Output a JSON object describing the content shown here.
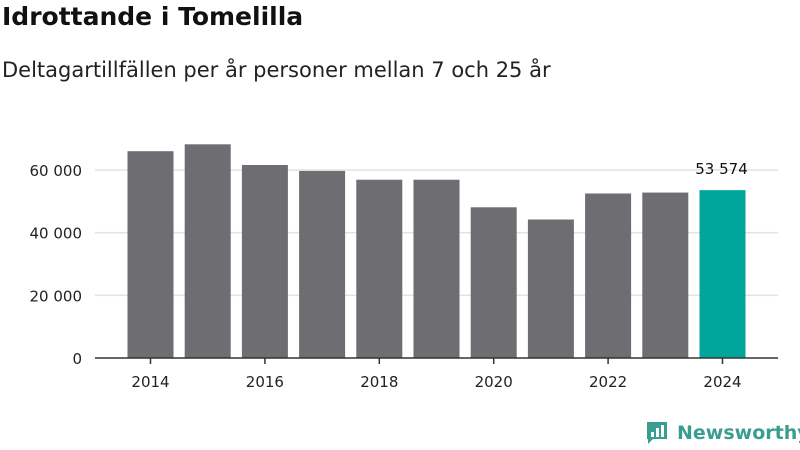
{
  "header": {
    "title": "Idrottande i Tomelilla",
    "subtitle": "Deltagartillfällen per år personer mellan 7 och 25 år"
  },
  "branding": {
    "logo_text": "Newsworthy"
  },
  "colors": {
    "bar": "#6e6d72",
    "highlight": "#00a69c",
    "grid": "#e2e2e2",
    "axis": "#333333",
    "brand": "#3a9d8f"
  },
  "chart_data": {
    "type": "bar",
    "title": "Idrottande i Tomelilla",
    "subtitle": "Deltagartillfällen per år personer mellan 7 och 25 år",
    "xlabel": "",
    "ylabel": "",
    "categories": [
      "2014",
      "2015",
      "2016",
      "2017",
      "2018",
      "2019",
      "2020",
      "2021",
      "2022",
      "2023",
      "2024"
    ],
    "values": [
      66000,
      68200,
      61600,
      59700,
      56900,
      56900,
      48100,
      44200,
      52500,
      52800,
      53574
    ],
    "highlight_index": 10,
    "ylim": [
      0,
      66000
    ],
    "yticks": [
      0,
      20000,
      40000,
      60000
    ],
    "ytick_labels": [
      "0",
      "20 000",
      "40 000",
      "60 000"
    ],
    "xtick_labels": [
      "2014",
      "2016",
      "2018",
      "2020",
      "2022",
      "2024"
    ],
    "annotation": {
      "category": "2024",
      "label": "53 574"
    },
    "grid": true
  }
}
